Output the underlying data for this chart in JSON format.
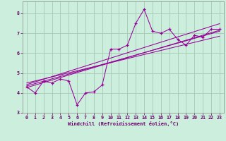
{
  "xlabel": "Windchill (Refroidissement éolien,°C)",
  "bg_color": "#cceedd",
  "grid_color": "#aaccbb",
  "line_color": "#990099",
  "xlim": [
    -0.5,
    23.5
  ],
  "ylim": [
    3.0,
    8.6
  ],
  "xticks": [
    0,
    1,
    2,
    3,
    4,
    5,
    6,
    7,
    8,
    9,
    10,
    11,
    12,
    13,
    14,
    15,
    16,
    17,
    18,
    19,
    20,
    21,
    22,
    23
  ],
  "yticks": [
    3,
    4,
    5,
    6,
    7,
    8
  ],
  "data_x": [
    0,
    1,
    2,
    3,
    4,
    5,
    6,
    7,
    8,
    9,
    10,
    11,
    12,
    13,
    14,
    15,
    16,
    17,
    18,
    19,
    20,
    21,
    22,
    23
  ],
  "data_y": [
    4.3,
    4.0,
    4.6,
    4.5,
    4.7,
    4.6,
    3.4,
    4.0,
    4.05,
    4.4,
    6.2,
    6.2,
    6.4,
    7.5,
    8.2,
    7.1,
    7.0,
    7.2,
    6.7,
    6.4,
    6.9,
    6.8,
    7.2,
    7.2
  ],
  "reg_lines": [
    {
      "x0": 0,
      "y0": 4.27,
      "x1": 23,
      "y1": 7.15
    },
    {
      "x0": 0,
      "y0": 4.5,
      "x1": 23,
      "y1": 6.85
    },
    {
      "x0": 0,
      "y0": 4.42,
      "x1": 23,
      "y1": 7.48
    },
    {
      "x0": 0,
      "y0": 4.35,
      "x1": 23,
      "y1": 7.1
    }
  ]
}
